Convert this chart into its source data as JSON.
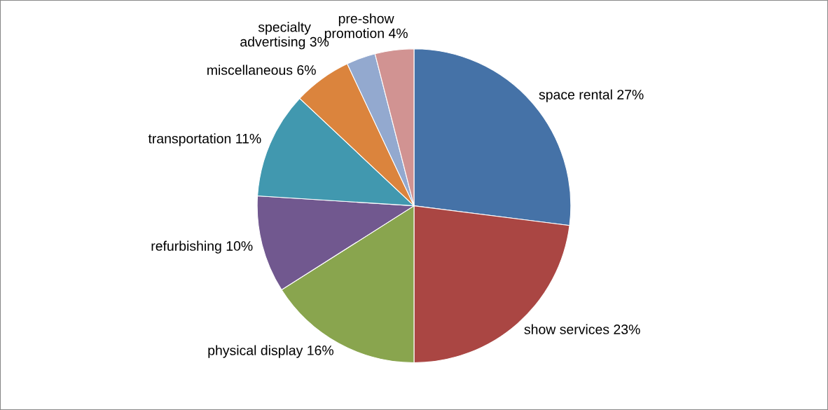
{
  "chart_data": {
    "type": "pie",
    "categories": [
      "space rental",
      "show services",
      "physical display",
      "refurbishing",
      "transportation",
      "miscellaneous",
      "specialty\nadvertising",
      "pre-show\npromotion"
    ],
    "values": [
      27,
      23,
      16,
      10,
      11,
      6,
      3,
      4
    ],
    "value_labels": [
      "27%",
      "23%",
      "16%",
      "10%",
      "11%",
      "6%",
      "3%",
      "4%"
    ],
    "colors": [
      "#4572a7",
      "#aa4643",
      "#89a54e",
      "#71588f",
      "#4198af",
      "#db843d",
      "#93a9cf",
      "#d19392"
    ],
    "legend": false
  }
}
